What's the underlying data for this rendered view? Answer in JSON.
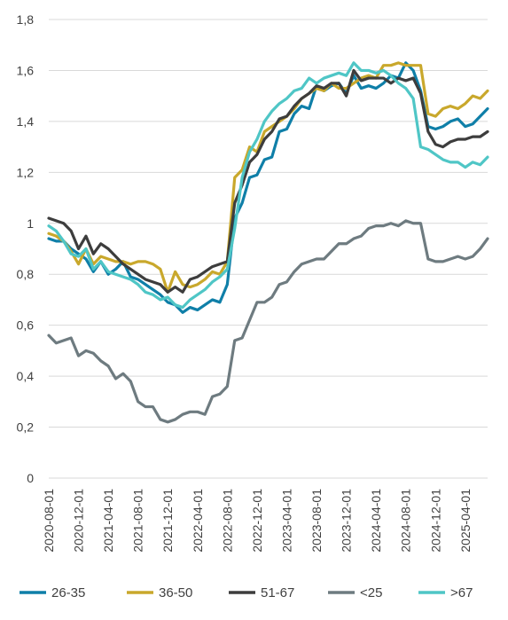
{
  "chart_data": {
    "type": "line",
    "title": "",
    "xlabel": "",
    "ylabel": "",
    "ylim": [
      0,
      1.8
    ],
    "y_ticks": [
      "0",
      "0,2",
      "0,4",
      "0,6",
      "0,8",
      "1",
      "1,2",
      "1,4",
      "1,6",
      "1,8"
    ],
    "grid": "horizontal",
    "legend_position": "bottom",
    "x_start": "2020-08",
    "x_tick_labels": [
      "2020-08-01",
      "2020-12-01",
      "2021-04-01",
      "2021-08-01",
      "2021-12-01",
      "2022-04-01",
      "2022-08-01",
      "2022-12-01",
      "2023-04-01",
      "2023-08-01",
      "2023-12-01",
      "2024-04-01",
      "2024-08-01",
      "2024-12-01",
      "2025-04-01"
    ],
    "series": [
      {
        "name": "26-35",
        "color": "#0f7fa8",
        "values": [
          0.94,
          0.93,
          0.93,
          0.9,
          0.88,
          0.86,
          0.81,
          0.85,
          0.8,
          0.82,
          0.85,
          0.79,
          0.78,
          0.76,
          0.74,
          0.72,
          0.69,
          0.68,
          0.65,
          0.67,
          0.66,
          0.68,
          0.7,
          0.69,
          0.76,
          1.02,
          1.08,
          1.18,
          1.19,
          1.25,
          1.26,
          1.36,
          1.37,
          1.43,
          1.46,
          1.45,
          1.54,
          1.52,
          1.54,
          1.55,
          1.51,
          1.58,
          1.53,
          1.54,
          1.53,
          1.55,
          1.58,
          1.57,
          1.63,
          1.6,
          1.52,
          1.38,
          1.37,
          1.38,
          1.4,
          1.41,
          1.38,
          1.39,
          1.42,
          1.45
        ]
      },
      {
        "name": "36-50",
        "color": "#c9a82c",
        "values": [
          0.96,
          0.95,
          0.93,
          0.89,
          0.84,
          0.9,
          0.84,
          0.87,
          0.86,
          0.85,
          0.85,
          0.84,
          0.85,
          0.85,
          0.84,
          0.82,
          0.73,
          0.81,
          0.76,
          0.75,
          0.76,
          0.78,
          0.81,
          0.8,
          0.85,
          1.18,
          1.21,
          1.3,
          1.28,
          1.36,
          1.38,
          1.4,
          1.42,
          1.45,
          1.49,
          1.51,
          1.53,
          1.52,
          1.55,
          1.53,
          1.53,
          1.55,
          1.57,
          1.58,
          1.57,
          1.62,
          1.62,
          1.63,
          1.62,
          1.62,
          1.62,
          1.43,
          1.42,
          1.45,
          1.46,
          1.45,
          1.47,
          1.5,
          1.49,
          1.52
        ]
      },
      {
        "name": "51-67",
        "color": "#3d3d3d",
        "values": [
          1.02,
          1.01,
          1.0,
          0.97,
          0.9,
          0.95,
          0.88,
          0.92,
          0.9,
          0.87,
          0.84,
          0.82,
          0.8,
          0.78,
          0.77,
          0.76,
          0.73,
          0.75,
          0.73,
          0.78,
          0.79,
          0.81,
          0.83,
          0.84,
          0.85,
          1.08,
          1.15,
          1.24,
          1.27,
          1.33,
          1.36,
          1.41,
          1.42,
          1.46,
          1.49,
          1.51,
          1.54,
          1.53,
          1.55,
          1.55,
          1.5,
          1.6,
          1.56,
          1.57,
          1.57,
          1.57,
          1.55,
          1.57,
          1.56,
          1.57,
          1.51,
          1.36,
          1.31,
          1.3,
          1.32,
          1.33,
          1.33,
          1.34,
          1.34,
          1.36
        ]
      },
      {
        "name": "<25",
        "color": "#6e7b80",
        "values": [
          0.56,
          0.53,
          0.54,
          0.55,
          0.48,
          0.5,
          0.49,
          0.46,
          0.44,
          0.39,
          0.41,
          0.38,
          0.3,
          0.28,
          0.28,
          0.23,
          0.22,
          0.23,
          0.25,
          0.26,
          0.26,
          0.25,
          0.32,
          0.33,
          0.36,
          0.54,
          0.55,
          0.62,
          0.69,
          0.69,
          0.71,
          0.76,
          0.77,
          0.81,
          0.84,
          0.85,
          0.86,
          0.86,
          0.89,
          0.92,
          0.92,
          0.94,
          0.95,
          0.98,
          0.99,
          0.99,
          1.0,
          0.99,
          1.01,
          1.0,
          1.0,
          0.86,
          0.85,
          0.85,
          0.86,
          0.87,
          0.86,
          0.87,
          0.9,
          0.94
        ]
      },
      {
        "name": ">67",
        "color": "#4fc6c6",
        "values": [
          0.99,
          0.97,
          0.93,
          0.88,
          0.87,
          0.9,
          0.82,
          0.85,
          0.81,
          0.8,
          0.79,
          0.78,
          0.76,
          0.73,
          0.72,
          0.7,
          0.71,
          0.68,
          0.67,
          0.7,
          0.72,
          0.74,
          0.77,
          0.79,
          0.82,
          0.98,
          1.18,
          1.28,
          1.33,
          1.4,
          1.44,
          1.47,
          1.49,
          1.52,
          1.53,
          1.57,
          1.55,
          1.57,
          1.58,
          1.59,
          1.58,
          1.63,
          1.6,
          1.6,
          1.59,
          1.6,
          1.58,
          1.55,
          1.53,
          1.49,
          1.3,
          1.29,
          1.27,
          1.25,
          1.24,
          1.24,
          1.22,
          1.24,
          1.23,
          1.26
        ]
      }
    ]
  }
}
